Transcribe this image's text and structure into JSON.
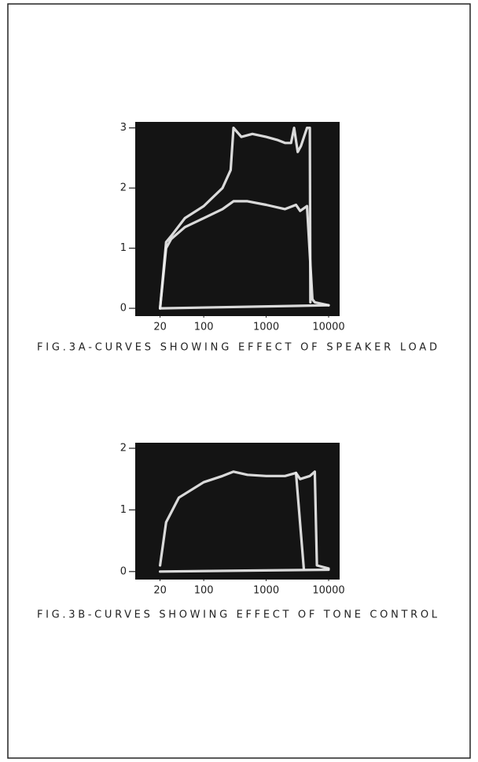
{
  "chart_data": [
    {
      "type": "line",
      "title": "FIG.3A-CURVES SHOWING EFFECT OF SPEAKER LOAD",
      "log_x": true,
      "background": "#141414",
      "xlim": [
        8,
        15000
      ],
      "xticks": [
        20,
        100,
        1000,
        10000
      ],
      "ylim": [
        -0.13,
        3.1
      ],
      "yticks": [
        0,
        1,
        2,
        3
      ],
      "series": [
        {
          "color": "#ececec",
          "x": [
            20,
            25,
            30,
            50,
            100,
            200,
            270,
            300,
            400,
            600,
            1000,
            1500,
            2000,
            2500,
            2800,
            3200,
            3600,
            4500,
            5000,
            5100
          ],
          "values": [
            0,
            1.1,
            1.2,
            1.5,
            1.7,
            2.0,
            2.3,
            3.0,
            2.85,
            2.9,
            2.85,
            2.8,
            2.75,
            2.75,
            3.0,
            2.6,
            2.7,
            3.0,
            3.0,
            0.1
          ]
        },
        {
          "color": "#ececec",
          "x": [
            20,
            25,
            30,
            50,
            100,
            200,
            300,
            500,
            1000,
            2000,
            3000,
            3500,
            4500,
            5500,
            6000,
            10000
          ],
          "values": [
            0,
            1.0,
            1.15,
            1.35,
            1.5,
            1.65,
            1.78,
            1.78,
            1.72,
            1.65,
            1.72,
            1.62,
            1.7,
            0.15,
            0.1,
            0.05
          ]
        },
        {
          "color": "#ececec",
          "x": [
            20,
            10000
          ],
          "values": [
            0,
            0.05
          ]
        }
      ]
    },
    {
      "type": "line",
      "title": "FIG.3B-CURVES SHOWING EFFECT OF TONE CONTROL",
      "log_x": true,
      "background": "#141414",
      "xlim": [
        8,
        15000
      ],
      "xticks": [
        20,
        100,
        1000,
        10000
      ],
      "ylim": [
        -0.13,
        2.09
      ],
      "yticks": [
        0,
        1,
        2
      ],
      "series": [
        {
          "color": "#ececec",
          "x": [
            20,
            25,
            40,
            100,
            200,
            300,
            500,
            1000,
            2000,
            3000,
            4000
          ],
          "values": [
            0.1,
            0.8,
            1.2,
            1.45,
            1.55,
            1.62,
            1.57,
            1.55,
            1.55,
            1.6,
            0.05
          ]
        },
        {
          "color": "#ececec",
          "x": [
            3000,
            3500,
            5000,
            6000,
            6500,
            10000
          ],
          "values": [
            1.6,
            1.5,
            1.55,
            1.62,
            0.1,
            0.05
          ]
        },
        {
          "color": "#ececec",
          "x": [
            20,
            10000
          ],
          "values": [
            0,
            0.03
          ]
        }
      ]
    }
  ]
}
